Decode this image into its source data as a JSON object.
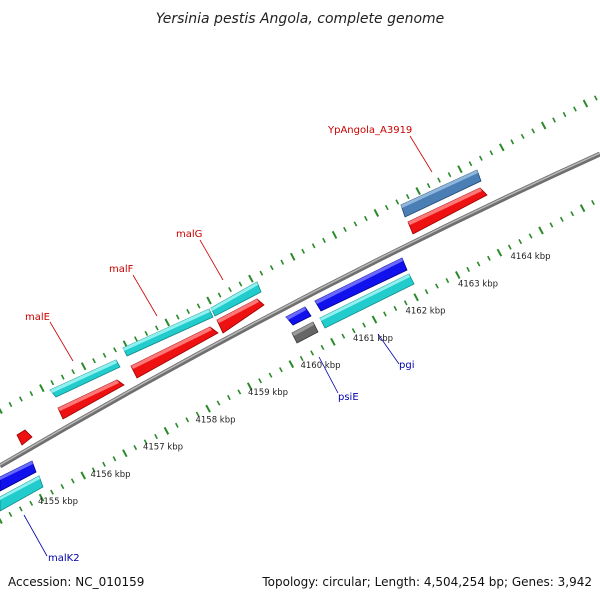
{
  "title": "Yersinia pestis Angola, complete genome",
  "footer": {
    "accession": "Accession: NC_010159",
    "summary": "Topology: circular; Length: 4,504,254 bp; Genes: 3,942"
  },
  "colors": {
    "backbone": "#8c8c8c",
    "ticks": "#2a8a2a",
    "cds_red": "#ee1111",
    "cds_cyan": "#22cccc",
    "cds_blue": "#1111ee",
    "cds_steel": "#4a7fb5",
    "cds_gray": "#666666",
    "label_red": "#cc0000",
    "label_blue": "#0000aa"
  },
  "kbp_labels": [
    "4155 kbp",
    "4156 kbp",
    "4157 kbp",
    "4158 kbp",
    "4159 kbp",
    "4160 kbp",
    "4161 kbp",
    "4162 kbp",
    "4163 kbp",
    "4164 kbp"
  ],
  "gene_labels": [
    {
      "text": "YpAngola_A3919",
      "color": "label_red"
    },
    {
      "text": "malG",
      "color": "label_red"
    },
    {
      "text": "malF",
      "color": "label_red"
    },
    {
      "text": "malE",
      "color": "label_red"
    },
    {
      "text": "pgi",
      "color": "label_blue"
    },
    {
      "text": "psiE",
      "color": "label_blue"
    },
    {
      "text": "malK2",
      "color": "label_blue"
    }
  ]
}
